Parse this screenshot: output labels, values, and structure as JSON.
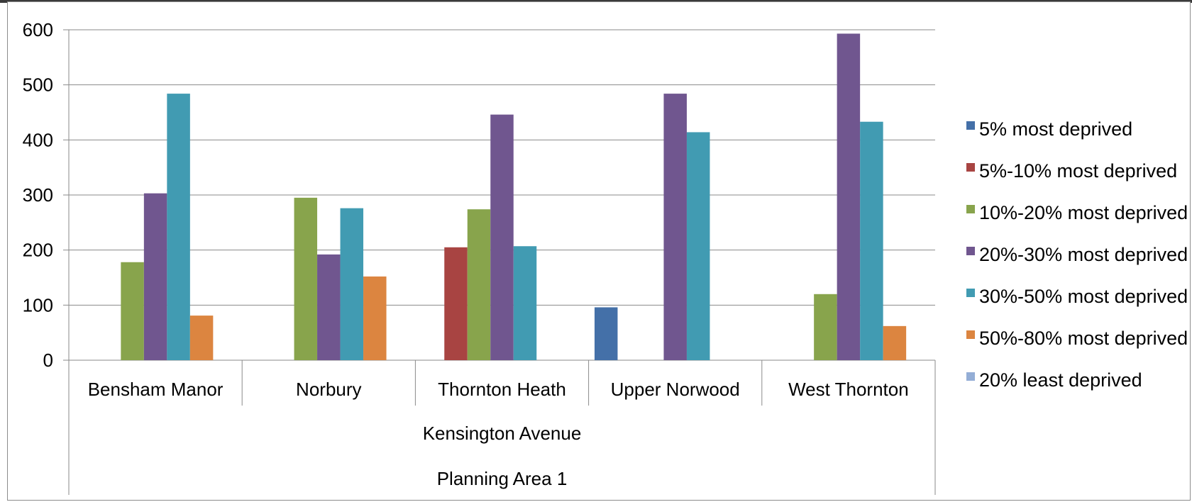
{
  "chart_data": {
    "type": "bar",
    "title": "",
    "xlabel": "",
    "ylabel": "",
    "ylim": [
      0,
      600
    ],
    "yticks": [
      0,
      100,
      200,
      300,
      400,
      500,
      600
    ],
    "categories": [
      "Bensham Manor",
      "Norbury",
      "Thornton Heath",
      "Upper Norwood",
      "West Thornton"
    ],
    "group_labels": [
      "Kensington Avenue",
      "Planning Area 1"
    ],
    "grid": "horizontal",
    "legend_position": "right",
    "series": [
      {
        "name": "5% most deprived",
        "color": "#4470a8",
        "values": [
          0,
          0,
          0,
          96,
          0
        ]
      },
      {
        "name": "5%-10% most deprived",
        "color": "#a84442",
        "values": [
          0,
          0,
          205,
          0,
          0
        ]
      },
      {
        "name": "10%-20% most deprived",
        "color": "#88a44c",
        "values": [
          178,
          295,
          274,
          0,
          120
        ]
      },
      {
        "name": "20%-30% most deprived",
        "color": "#70568f",
        "values": [
          303,
          192,
          446,
          484,
          593
        ]
      },
      {
        "name": "30%-50% most deprived",
        "color": "#419bb2",
        "values": [
          484,
          276,
          207,
          414,
          433
        ]
      },
      {
        "name": "50%-80% most deprived",
        "color": "#dc8540",
        "values": [
          81,
          152,
          0,
          0,
          62
        ]
      },
      {
        "name": "20% least deprived",
        "color": "#94aed6",
        "values": [
          0,
          0,
          0,
          0,
          0
        ]
      }
    ]
  }
}
